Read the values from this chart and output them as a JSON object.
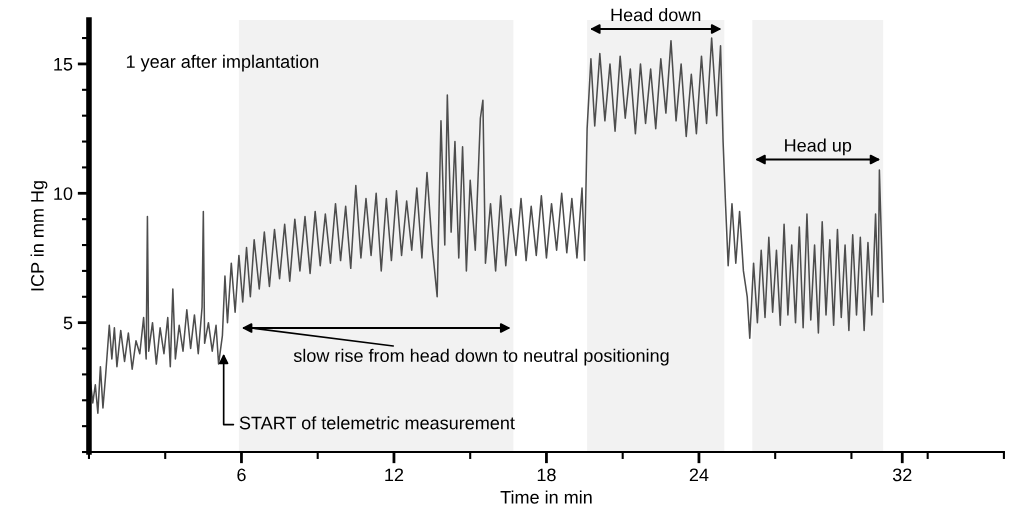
{
  "chart_data": {
    "type": "line",
    "xlabel": "Time in min",
    "ylabel": "ICP in mm Hg",
    "xlim": [
      0,
      36
    ],
    "xticks": [
      6,
      12,
      18,
      24,
      32
    ],
    "ylim": [
      0,
      16.7
    ],
    "yticks": [
      5,
      10,
      15
    ],
    "grid": false,
    "legend": false,
    "marker": "none",
    "line_style": "solid",
    "x": [
      0.05,
      0.15,
      0.25,
      0.35,
      0.45,
      0.55,
      0.65,
      0.8,
      0.9,
      1.0,
      1.1,
      1.25,
      1.4,
      1.55,
      1.7,
      1.85,
      2.0,
      2.15,
      2.25,
      2.3,
      2.35,
      2.5,
      2.65,
      2.8,
      2.95,
      3.1,
      3.2,
      3.3,
      3.4,
      3.55,
      3.7,
      3.85,
      4.0,
      4.15,
      4.3,
      4.45,
      4.5,
      4.55,
      4.7,
      4.85,
      5.0,
      5.1,
      5.25,
      5.35,
      5.45,
      5.6,
      5.75,
      5.9,
      6.05,
      6.2,
      6.35,
      6.5,
      6.7,
      6.9,
      7.1,
      7.3,
      7.5,
      7.7,
      7.9,
      8.1,
      8.3,
      8.5,
      8.7,
      8.9,
      9.1,
      9.3,
      9.5,
      9.7,
      9.9,
      10.1,
      10.3,
      10.5,
      10.7,
      10.9,
      11.1,
      11.3,
      11.5,
      11.7,
      11.9,
      12.1,
      12.3,
      12.5,
      12.7,
      12.9,
      13.1,
      13.3,
      13.5,
      13.7,
      13.85,
      14.0,
      14.1,
      14.25,
      14.4,
      14.55,
      14.7,
      14.85,
      15.0,
      15.2,
      15.4,
      15.5,
      15.6,
      15.8,
      16.0,
      16.2,
      16.4,
      16.6,
      16.8,
      17.0,
      17.2,
      17.4,
      17.6,
      17.8,
      18.0,
      18.2,
      18.4,
      18.6,
      18.8,
      19.0,
      19.2,
      19.4,
      19.5,
      19.6,
      19.75,
      19.9,
      20.1,
      20.3,
      20.5,
      20.7,
      20.9,
      21.1,
      21.3,
      21.5,
      21.7,
      21.9,
      22.1,
      22.3,
      22.5,
      22.7,
      22.9,
      23.1,
      23.3,
      23.5,
      23.7,
      23.9,
      24.1,
      24.3,
      24.5,
      24.7,
      24.85,
      24.95,
      25.05,
      25.15,
      25.3,
      25.45,
      25.6,
      25.75,
      25.9,
      26.0,
      26.15,
      26.3,
      26.45,
      26.6,
      26.75,
      26.9,
      27.05,
      27.2,
      27.35,
      27.5,
      27.65,
      27.8,
      27.95,
      28.1,
      28.25,
      28.4,
      28.55,
      28.7,
      28.85,
      29.0,
      29.15,
      29.3,
      29.45,
      29.6,
      29.75,
      29.9,
      30.05,
      30.2,
      30.35,
      30.5,
      30.65,
      30.8,
      30.95,
      31.05,
      31.1,
      31.2,
      31.25
    ],
    "series": [
      {
        "color": "#4d4d4d",
        "values": [
          2.8,
          1.9,
          2.6,
          1.5,
          3.3,
          1.7,
          2.9,
          4.9,
          3.6,
          4.8,
          3.3,
          4.7,
          3.5,
          4.6,
          3.2,
          4.3,
          3.8,
          5.2,
          3.6,
          9.1,
          3.9,
          5.0,
          3.4,
          4.8,
          3.8,
          5.2,
          3.3,
          6.3,
          3.6,
          4.9,
          3.9,
          5.5,
          4.0,
          5.3,
          3.8,
          5.6,
          9.3,
          4.2,
          5.0,
          3.9,
          4.9,
          3.4,
          4.5,
          6.8,
          5.0,
          7.3,
          5.4,
          7.6,
          5.8,
          7.9,
          6.0,
          8.2,
          6.3,
          8.5,
          6.4,
          8.6,
          6.7,
          8.8,
          6.6,
          9.0,
          7.0,
          9.1,
          6.9,
          9.3,
          7.2,
          9.2,
          7.3,
          9.6,
          7.4,
          9.5,
          7.1,
          10.3,
          7.5,
          9.8,
          7.6,
          10.0,
          7.0,
          9.8,
          7.4,
          10.1,
          7.6,
          9.7,
          7.8,
          10.2,
          7.5,
          10.8,
          8.0,
          6.0,
          12.8,
          8.0,
          13.8,
          8.5,
          12.0,
          7.5,
          11.8,
          7.0,
          10.5,
          7.8,
          12.9,
          13.6,
          7.3,
          9.6,
          7.0,
          9.9,
          7.2,
          9.4,
          7.6,
          9.8,
          7.4,
          9.5,
          7.6,
          9.9,
          7.5,
          9.6,
          7.8,
          10.0,
          7.7,
          9.8,
          7.5,
          10.2,
          7.4,
          12.5,
          15.2,
          12.6,
          15.4,
          12.8,
          15.0,
          12.4,
          15.3,
          12.9,
          14.8,
          12.3,
          15.0,
          12.7,
          14.8,
          12.5,
          15.2,
          13.1,
          15.9,
          12.8,
          15.0,
          12.2,
          14.6,
          12.3,
          15.3,
          12.7,
          16.0,
          13.0,
          15.7,
          12.0,
          9.5,
          7.2,
          9.6,
          7.3,
          9.3,
          7.0,
          6.0,
          4.4,
          7.3,
          5.0,
          7.8,
          5.2,
          8.3,
          5.4,
          7.8,
          4.9,
          8.8,
          5.3,
          8.0,
          5.0,
          8.7,
          4.8,
          9.2,
          5.1,
          8.0,
          4.6,
          8.9,
          5.3,
          8.2,
          4.9,
          8.6,
          5.2,
          8.0,
          4.7,
          8.4,
          5.3,
          8.3,
          4.7,
          8.1,
          5.3,
          9.2,
          6.0,
          10.9,
          7.5,
          5.8
        ]
      }
    ],
    "bands": [
      {
        "axis": "x",
        "from": 5.9,
        "to": 16.7,
        "label": "slow rise from head down to neutral positioning",
        "color": "#f2f2f2"
      },
      {
        "axis": "x",
        "from": 19.6,
        "to": 25.0,
        "label": "Head down",
        "color": "#f2f2f2"
      },
      {
        "axis": "x",
        "from": 26.1,
        "to": 31.25,
        "label": "Head up",
        "color": "#f2f2f2"
      }
    ],
    "annotations": [
      "1 year after implantation",
      {
        "text": "START of telemetric measurement",
        "x": 5.3,
        "y": 3.8
      }
    ]
  }
}
